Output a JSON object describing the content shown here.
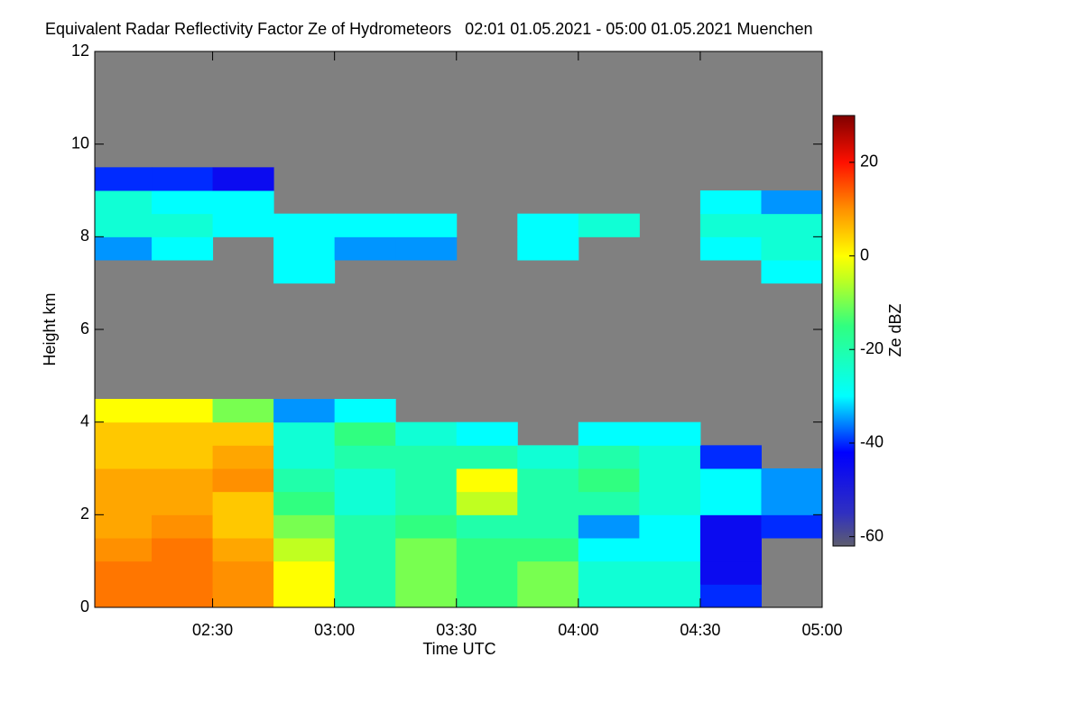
{
  "chart_data": {
    "type": "heatmap",
    "title": "Equivalent Radar Reflectivity Factor Ze of Hydrometeors   02:01 01.05.2021 - 05:00 01.05.2021 Muenchen",
    "x_label": "Time UTC",
    "y_label": "Height km",
    "colorbar_label": "Ze dBZ",
    "xlim": [
      2.0167,
      5.0
    ],
    "xticks": [
      {
        "value": 2.5,
        "label": "02:30"
      },
      {
        "value": 3.0,
        "label": "03:00"
      },
      {
        "value": 3.5,
        "label": "03:30"
      },
      {
        "value": 4.0,
        "label": "04:00"
      },
      {
        "value": 4.5,
        "label": "04:30"
      },
      {
        "value": 5.0,
        "label": "05:00"
      }
    ],
    "ylim": [
      0,
      12
    ],
    "yticks": [
      0,
      2,
      4,
      6,
      8,
      10,
      12
    ],
    "zlim": [
      -62,
      30
    ],
    "zticks": [
      -60,
      -40,
      -20,
      0,
      20
    ],
    "missing_color": "#808080",
    "colorscale": [
      [
        -62,
        "#5e5e6e"
      ],
      [
        -55,
        "#3030c0"
      ],
      [
        -42,
        "#0000ff"
      ],
      [
        -30,
        "#00ffff"
      ],
      [
        -15,
        "#30ff80"
      ],
      [
        -5,
        "#c0ff20"
      ],
      [
        0,
        "#ffff00"
      ],
      [
        10,
        "#ff9000"
      ],
      [
        20,
        "#ff1000"
      ],
      [
        30,
        "#800000"
      ]
    ],
    "x_bins": [
      2.0167,
      2.25,
      2.5,
      2.75,
      3.0,
      3.25,
      3.5,
      3.75,
      4.0,
      4.25,
      4.5,
      4.75,
      5.0
    ],
    "y_bins": [
      0,
      0.5,
      1,
      1.5,
      2,
      2.5,
      3,
      3.5,
      4,
      4.5,
      5,
      5.5,
      6,
      6.5,
      7,
      7.5,
      8,
      8.5,
      9,
      9.5,
      10,
      10.5,
      11,
      11.5,
      12
    ],
    "z": [
      [
        12,
        12,
        10,
        0,
        -20,
        -10,
        -15,
        -10,
        -25,
        -25,
        -40,
        null
      ],
      [
        12,
        12,
        10,
        0,
        -20,
        -10,
        -15,
        -10,
        -25,
        -25,
        -45,
        null
      ],
      [
        10,
        12,
        8,
        -5,
        -20,
        -10,
        -15,
        -15,
        -30,
        -30,
        -45,
        null
      ],
      [
        8,
        10,
        5,
        -10,
        -20,
        -15,
        -20,
        -20,
        -35,
        -30,
        -45,
        -40
      ],
      [
        8,
        8,
        5,
        -15,
        -25,
        -20,
        -5,
        -20,
        -20,
        -25,
        -30,
        -35
      ],
      [
        8,
        8,
        10,
        -20,
        -25,
        -20,
        0,
        -20,
        -15,
        -25,
        -30,
        -35
      ],
      [
        5,
        5,
        8,
        -25,
        -20,
        -20,
        -20,
        -25,
        -20,
        -25,
        -40,
        null
      ],
      [
        5,
        5,
        5,
        -25,
        -15,
        -25,
        -30,
        null,
        -30,
        -30,
        null,
        null
      ],
      [
        0,
        0,
        -10,
        -35,
        -30,
        null,
        null,
        null,
        null,
        null,
        null,
        null
      ],
      [
        null,
        null,
        null,
        null,
        null,
        null,
        null,
        null,
        null,
        null,
        null,
        null
      ],
      [
        null,
        null,
        null,
        null,
        null,
        null,
        null,
        null,
        null,
        null,
        null,
        null
      ],
      [
        null,
        null,
        null,
        null,
        null,
        null,
        null,
        null,
        null,
        null,
        null,
        null
      ],
      [
        null,
        null,
        null,
        null,
        null,
        null,
        null,
        null,
        null,
        null,
        null,
        null
      ],
      [
        null,
        null,
        null,
        null,
        null,
        null,
        null,
        null,
        null,
        null,
        null,
        null
      ],
      [
        null,
        null,
        null,
        -30,
        null,
        null,
        null,
        null,
        null,
        null,
        null,
        -30
      ],
      [
        -35,
        -30,
        null,
        -30,
        -35,
        -35,
        null,
        -30,
        null,
        null,
        -30,
        -25
      ],
      [
        -25,
        -25,
        -30,
        -30,
        -30,
        -30,
        null,
        -30,
        -25,
        null,
        -25,
        -25
      ],
      [
        -25,
        -30,
        -30,
        null,
        null,
        null,
        null,
        null,
        null,
        null,
        -30,
        -35
      ],
      [
        -40,
        -40,
        -45,
        null,
        null,
        null,
        null,
        null,
        null,
        null,
        null,
        null
      ],
      [
        null,
        null,
        null,
        null,
        null,
        null,
        null,
        null,
        null,
        null,
        null,
        null
      ],
      [
        null,
        null,
        null,
        null,
        null,
        null,
        null,
        null,
        null,
        null,
        null,
        null
      ],
      [
        null,
        null,
        null,
        null,
        null,
        null,
        null,
        null,
        null,
        null,
        null,
        null
      ],
      [
        null,
        null,
        null,
        null,
        null,
        null,
        null,
        null,
        null,
        null,
        null,
        null
      ],
      [
        null,
        null,
        null,
        null,
        null,
        null,
        null,
        null,
        null,
        null,
        null,
        null
      ]
    ]
  }
}
